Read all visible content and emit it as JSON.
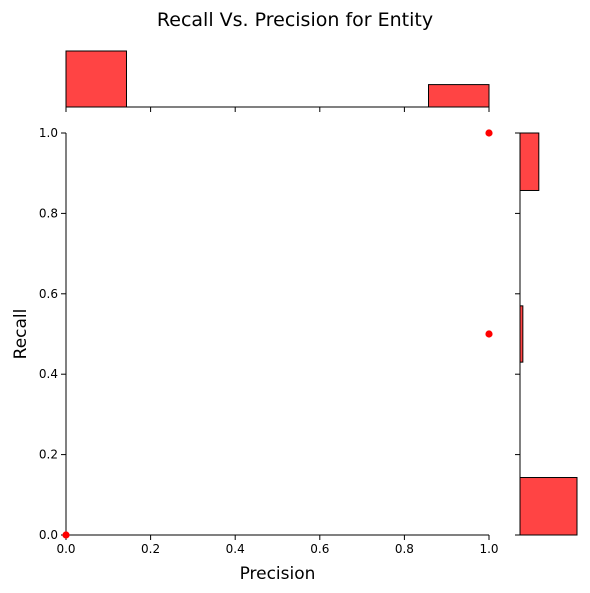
{
  "chart_data": {
    "type": "scatter",
    "title": "Recall Vs. Precision for Entity",
    "xlabel": "Precision",
    "ylabel": "Recall",
    "xlim": [
      0,
      1
    ],
    "ylim": [
      0,
      1
    ],
    "xticks": [
      "0.0",
      "0.2",
      "0.4",
      "0.6",
      "0.8",
      "1.0"
    ],
    "yticks": [
      "0.0",
      "0.2",
      "0.4",
      "0.6",
      "0.8",
      "1.0"
    ],
    "grid": false,
    "color": "#ff0000",
    "bar_color": "#ff4444",
    "points": [
      {
        "x": 0.0,
        "y": 0.0
      },
      {
        "x": 1.0,
        "y": 0.5
      },
      {
        "x": 1.0,
        "y": 1.0
      }
    ],
    "marginal_x_hist": {
      "bins": [
        [
          0.0,
          0.143
        ],
        [
          0.857,
          1.0
        ]
      ],
      "relative_counts": [
        1.0,
        0.4
      ]
    },
    "marginal_y_hist": {
      "bins": [
        [
          0.0,
          0.143
        ],
        [
          0.43,
          0.57
        ],
        [
          0.857,
          1.0
        ]
      ],
      "relative_counts": [
        1.0,
        0.05,
        0.33
      ]
    }
  }
}
